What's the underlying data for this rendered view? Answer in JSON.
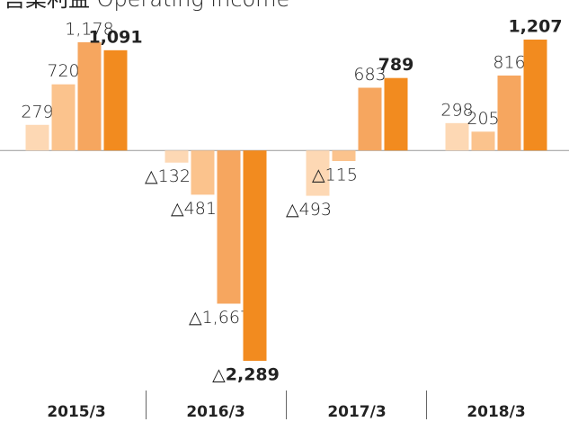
{
  "chart_data": {
    "type": "bar",
    "title": "営業利益 Operating income",
    "categories": [
      "2015/3",
      "2016/3",
      "2017/3",
      "2018/3"
    ],
    "series": [
      {
        "color": "#fdd8b4",
        "values": [
          279,
          -132,
          -493,
          298
        ],
        "value_labels": [
          "279",
          "△132",
          "△493",
          "298"
        ]
      },
      {
        "color": "#fbc38d",
        "values": [
          720,
          -481,
          -115,
          205
        ],
        "value_labels": [
          "720",
          "△481",
          "△115",
          "205"
        ]
      },
      {
        "color": "#f6a65f",
        "values": [
          1178,
          -1667,
          683,
          816
        ],
        "value_labels": [
          "1,178",
          "△1,667",
          "683",
          "816"
        ]
      },
      {
        "color": "#f28b1f",
        "values": [
          1091,
          -2289,
          789,
          1207
        ],
        "value_labels": [
          "1,091",
          "△2,289",
          "789",
          "1,207"
        ]
      }
    ]
  }
}
